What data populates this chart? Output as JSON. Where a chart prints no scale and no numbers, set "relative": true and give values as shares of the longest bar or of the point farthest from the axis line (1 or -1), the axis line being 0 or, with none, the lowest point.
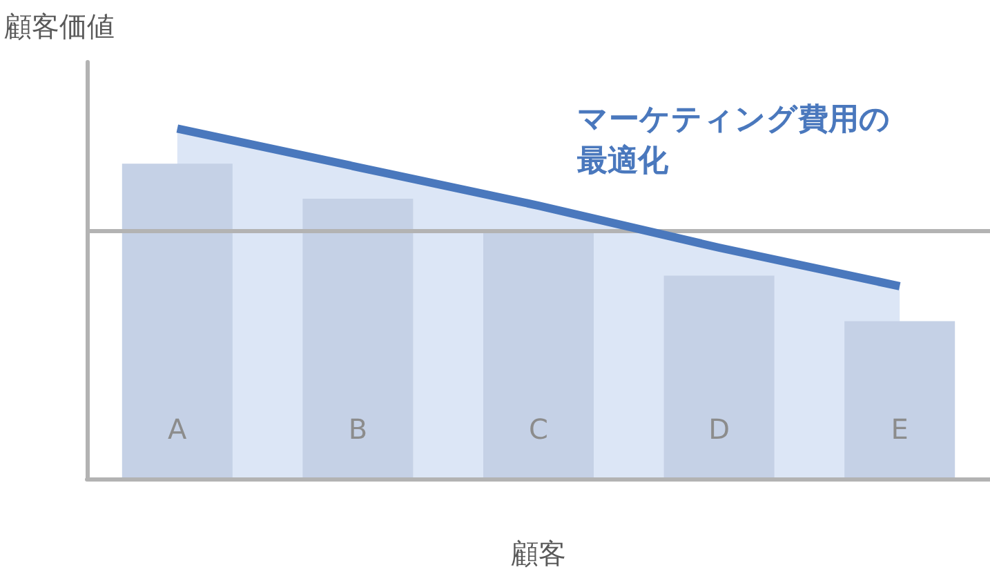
{
  "chart_data": {
    "type": "bar",
    "relative": true,
    "xlabel": "顧客",
    "ylabel": "顧客価値",
    "categories": [
      "A",
      "B",
      "C",
      "D",
      "E"
    ],
    "series": [
      {
        "color": "#c5d1e6",
        "values": [
          0.9,
          0.8,
          0.71,
          0.58,
          0.45
        ]
      },
      {
        "type": "area",
        "color": "#4a78bd",
        "values": [
          1,
          0.89,
          0.78,
          0.66,
          0.55
        ]
      }
    ],
    "ref_lines": [
      {
        "axis": "y",
        "value": 0.71,
        "color": "#b3b3b3"
      }
    ],
    "annotations": [
      "マーケティング費用の最適化"
    ]
  }
}
